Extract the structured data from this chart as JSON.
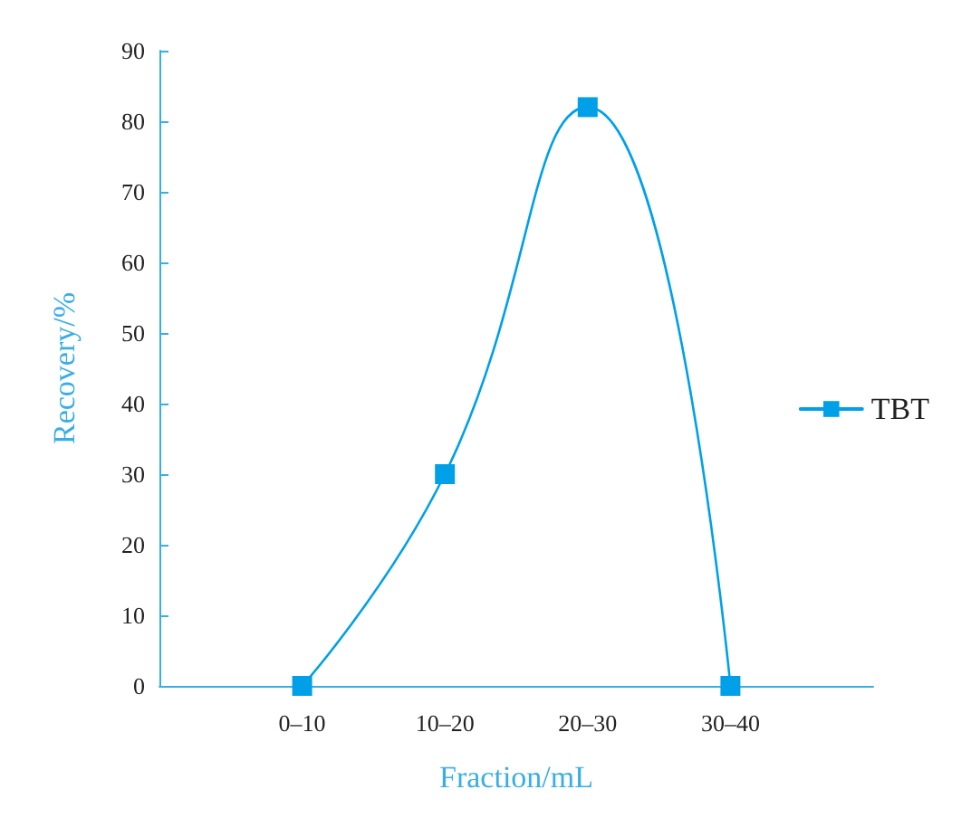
{
  "chart_data": {
    "type": "line",
    "xlabel": "Fraction/mL",
    "ylabel": "Recovery/%",
    "categories": [
      null,
      "0–10",
      "10–20",
      "20–30",
      "30–40",
      null
    ],
    "series": [
      {
        "name": "TBT",
        "color": "#00a0e9",
        "values": [
          null,
          0,
          30,
          82,
          0,
          null
        ]
      }
    ],
    "ylim": [
      0,
      90
    ],
    "yticks": [
      0,
      10,
      20,
      30,
      40,
      50,
      60,
      70,
      80,
      90
    ],
    "grid": false,
    "legend": "right",
    "marker": "square",
    "line_style": "solid"
  }
}
